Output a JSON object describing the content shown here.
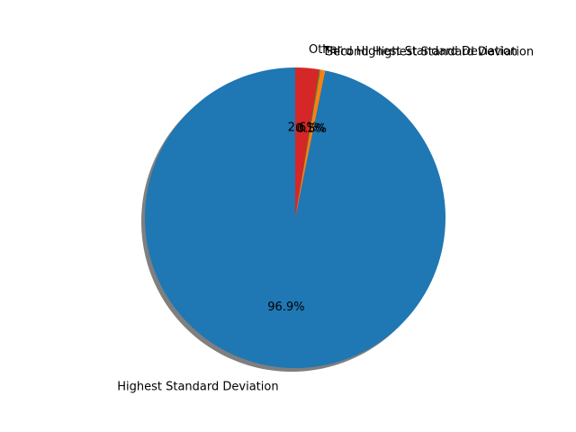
{
  "chart_data": {
    "type": "pie",
    "title": "",
    "start_angle_deg": 90,
    "direction": "counterclockwise",
    "shadow": true,
    "slices": [
      {
        "label": "Highest Standard Deviation",
        "value": 96.9,
        "pct_text": "96.9%",
        "color": "#1f77b4"
      },
      {
        "label": "Second Highest Standard Deviation",
        "value": 0.5,
        "pct_text": "0.5%",
        "color": "#ff7f0e"
      },
      {
        "label": "Third Highest Standard Deviation",
        "value": 0.1,
        "pct_text": "0.1%",
        "color": "#2ca02c"
      },
      {
        "label": "Other",
        "value": 2.6,
        "pct_text": "2.6%",
        "color": "#d62728"
      }
    ]
  }
}
